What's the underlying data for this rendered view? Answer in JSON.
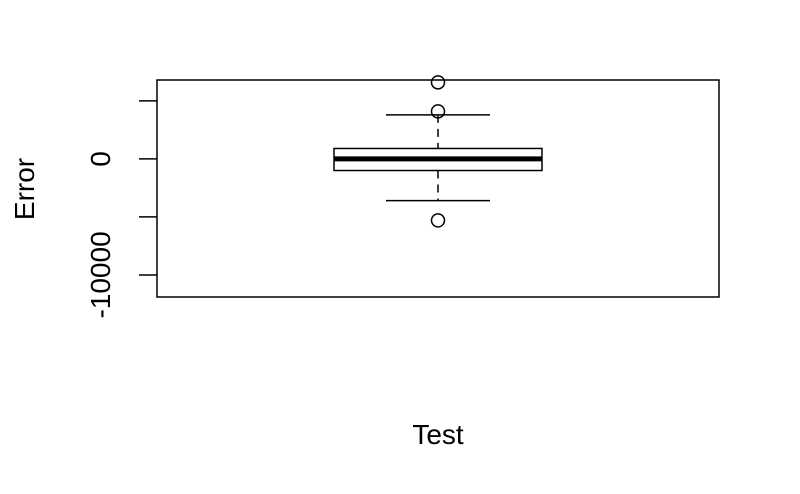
{
  "chart_data": {
    "type": "boxplot",
    "xlabel": "Test",
    "ylabel": "Error",
    "ylim": [
      -11900,
      6800
    ],
    "yticks": [
      -10000,
      -5000,
      0,
      5000
    ],
    "ytick_labels_shown": {
      "-10000": "-10000",
      "0": "0"
    },
    "box": {
      "whisker_low": -3600,
      "q1": -1000,
      "median": 0,
      "q3": 900,
      "whisker_high": 3800
    },
    "outliers": [
      6600,
      4100,
      -5300
    ]
  }
}
